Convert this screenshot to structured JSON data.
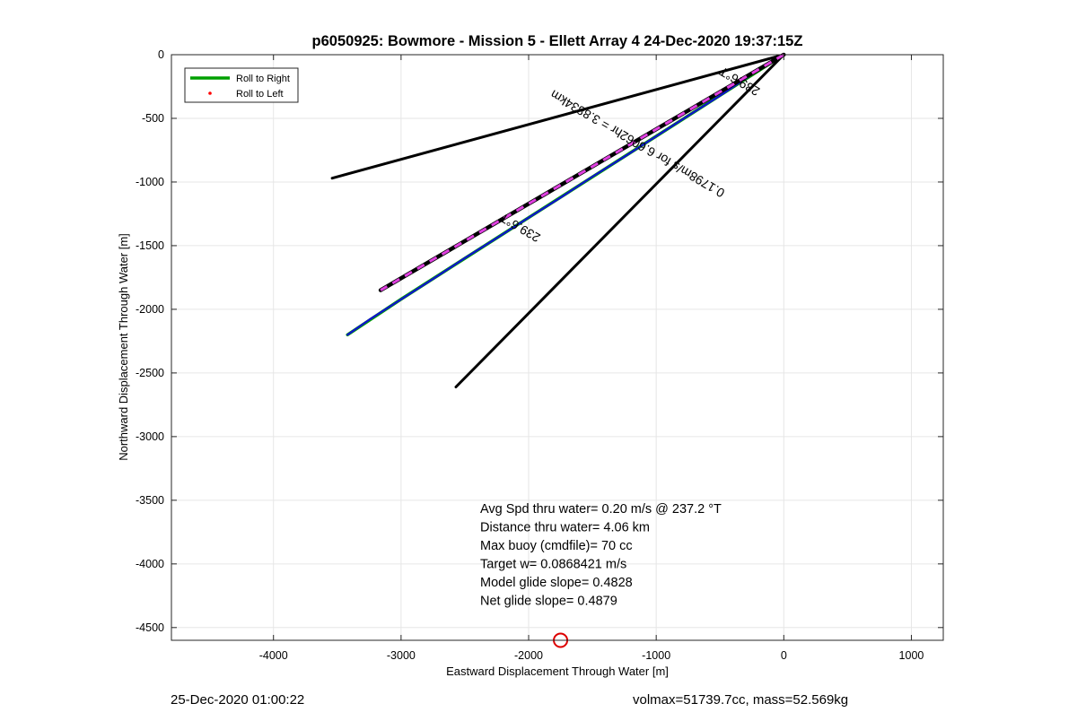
{
  "chart_data": {
    "type": "line",
    "title": "p6050925: Bowmore - Mission 5 - Ellett Array 4 24-Dec-2020 19:37:15Z",
    "xlabel": "Eastward Displacement Through Water [m]",
    "ylabel": "Northward Displacement Through Water [m]",
    "xlim": [
      -4800,
      1250
    ],
    "ylim": [
      -4600,
      0
    ],
    "xticks": [
      -4000,
      -3000,
      -2000,
      -1000,
      0,
      1000
    ],
    "yticks": [
      0,
      -500,
      -1000,
      -1500,
      -2000,
      -2500,
      -3000,
      -3500,
      -4000,
      -4500
    ],
    "grid": true,
    "legend": {
      "location": "top-left",
      "entries": [
        {
          "label": "Roll to Right",
          "color": "#00a000",
          "marker": "line"
        },
        {
          "label": "Roll to Left",
          "color": "#ff0000",
          "marker": "dot"
        }
      ]
    },
    "series": [
      {
        "name": "Roll to Right",
        "color": "#00a000",
        "x": [
          0,
          -500,
          -1000,
          -1500,
          -2000,
          -2500,
          -3000,
          -3420
        ],
        "y": [
          0,
          -320,
          -640,
          -960,
          -1280,
          -1600,
          -1920,
          -2200
        ]
      },
      {
        "color": "#1010d0",
        "x": [
          0,
          -250,
          -500,
          -750,
          -1000,
          -1250,
          -1500,
          -1750,
          -2000,
          -2250,
          -2500,
          -2750,
          -3000,
          -3250,
          -3420
        ],
        "y": [
          0,
          -155,
          -322,
          -480,
          -640,
          -802,
          -958,
          -1122,
          -1280,
          -1440,
          -1598,
          -1762,
          -1922,
          -2082,
          -2200
        ]
      },
      {
        "color": "#000000",
        "x": [
          0,
          -3540
        ],
        "y": [
          0,
          -970
        ]
      },
      {
        "color": "#000000",
        "x": [
          0,
          -2570
        ],
        "y": [
          0,
          -2610
        ]
      },
      {
        "color": "#000000",
        "x": [
          0,
          -3160
        ],
        "y": [
          0,
          -1850
        ]
      },
      {
        "color": "#e040e0",
        "x": [
          0,
          -3160
        ],
        "y": [
          0,
          -1850
        ]
      }
    ],
    "markers": [
      {
        "x": -1750,
        "y": -4600,
        "color": "#dd0000",
        "shape": "circle"
      }
    ],
    "annotations": [
      {
        "text": "239.6°T",
        "x": -330,
        "y": -180,
        "rotate": 210.4
      },
      {
        "text": "0.1798m/s for 6.6062hr = 3.8834km",
        "x": -1130,
        "y": -670,
        "rotate": 210.4
      },
      {
        "text": "239.6°T",
        "x": -2050,
        "y": -1330,
        "rotate": 210.4
      }
    ],
    "info_lines": [
      "Avg Spd thru water=  0.20 m/s @ 237.2 °T",
      "Distance thru water=  4.06 km",
      "Max buoy (cmdfile)= 70 cc",
      "Target w= 0.0868421 m/s",
      "Model glide slope= 0.4828",
      "Net glide slope= 0.4879"
    ]
  },
  "footer": {
    "timestamp": "25-Dec-2020 01:00:22",
    "volume_mass": "volmax=51739.7cc, mass=52.569kg"
  }
}
